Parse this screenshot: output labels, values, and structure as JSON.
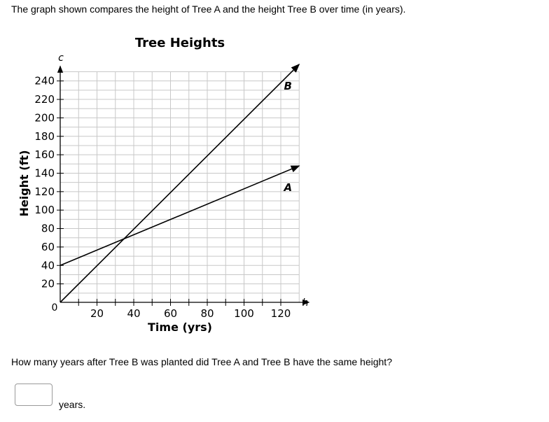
{
  "prompt": "The graph shown compares the height of Tree A and the height Tree B over time (in years).",
  "question": "How many years after Tree B was planted did Tree A and Tree B have the same height?",
  "answer": {
    "value": "",
    "unit": "years."
  },
  "chart_data": {
    "type": "line",
    "title": "Tree Heights",
    "xlabel": "Time (yrs)",
    "ylabel": "Height (ft)",
    "x_axis_var": "h",
    "y_axis_var": "c",
    "origin_label": "0",
    "xlim": [
      0,
      130
    ],
    "ylim": [
      0,
      260
    ],
    "x_ticks": [
      20,
      40,
      60,
      80,
      100,
      120
    ],
    "y_ticks": [
      20,
      40,
      60,
      80,
      100,
      120,
      140,
      160,
      180,
      200,
      220,
      240
    ],
    "grid": true,
    "series": [
      {
        "name": "A",
        "x": [
          0,
          130
        ],
        "y": [
          40,
          148
        ]
      },
      {
        "name": "B",
        "x": [
          0,
          130
        ],
        "y": [
          0,
          258
        ]
      }
    ]
  }
}
